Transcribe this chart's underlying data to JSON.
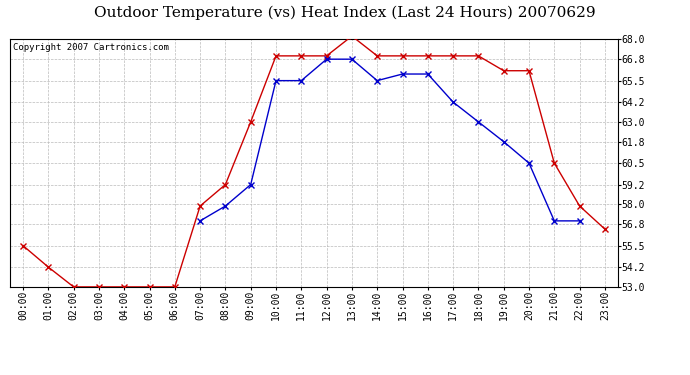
{
  "title": "Outdoor Temperature (vs) Heat Index (Last 24 Hours) 20070629",
  "copyright": "Copyright 2007 Cartronics.com",
  "x_labels": [
    "00:00",
    "01:00",
    "02:00",
    "03:00",
    "04:00",
    "05:00",
    "06:00",
    "07:00",
    "08:00",
    "09:00",
    "10:00",
    "11:00",
    "12:00",
    "13:00",
    "14:00",
    "15:00",
    "16:00",
    "17:00",
    "18:00",
    "19:00",
    "20:00",
    "21:00",
    "22:00",
    "23:00"
  ],
  "temp_red": [
    55.5,
    54.2,
    53.0,
    53.0,
    53.0,
    53.0,
    53.0,
    57.9,
    59.2,
    63.0,
    67.0,
    67.0,
    67.0,
    68.2,
    67.0,
    67.0,
    67.0,
    67.0,
    67.0,
    66.1,
    66.1,
    60.5,
    57.9,
    56.5
  ],
  "heat_blue": [
    null,
    null,
    null,
    null,
    null,
    null,
    null,
    57.0,
    57.9,
    59.2,
    65.5,
    65.5,
    66.8,
    66.8,
    65.5,
    65.9,
    65.9,
    64.2,
    63.0,
    61.8,
    60.5,
    57.0,
    57.0,
    null
  ],
  "ylim_min": 53.0,
  "ylim_max": 68.0,
  "ytick_vals": [
    53.0,
    54.2,
    55.5,
    56.8,
    58.0,
    59.2,
    60.5,
    61.8,
    63.0,
    64.2,
    65.5,
    66.8,
    68.0
  ],
  "ytick_labels": [
    "53.0",
    "54.2",
    "55.5",
    "56.8",
    "58.0",
    "59.2",
    "60.5",
    "61.8",
    "63.0",
    "64.2",
    "65.5",
    "66.8",
    "68.0"
  ],
  "red_color": "#cc0000",
  "blue_color": "#0000cc",
  "bg_color": "#ffffff",
  "grid_color": "#bbbbbb",
  "title_fontsize": 11,
  "tick_fontsize": 7,
  "copyright_fontsize": 6.5
}
